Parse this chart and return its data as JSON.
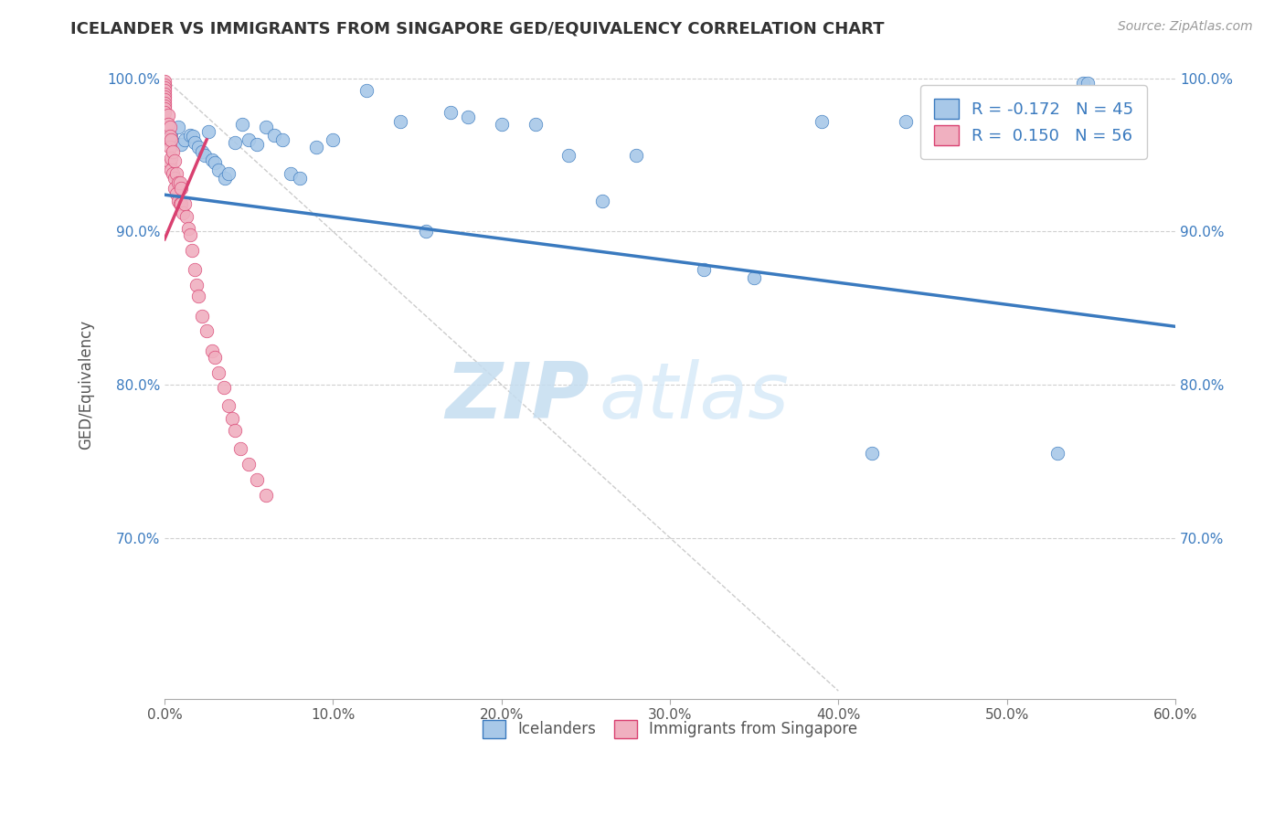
{
  "title": "ICELANDER VS IMMIGRANTS FROM SINGAPORE GED/EQUIVALENCY CORRELATION CHART",
  "source": "Source: ZipAtlas.com",
  "ylabel_label": "GED/Equivalency",
  "xlim": [
    0.0,
    0.6
  ],
  "ylim": [
    0.595,
    1.005
  ],
  "xticks": [
    0.0,
    0.1,
    0.2,
    0.3,
    0.4,
    0.5,
    0.6
  ],
  "yticks": [
    0.7,
    0.8,
    0.9,
    1.0
  ],
  "ytick_labels": [
    "70.0%",
    "80.0%",
    "90.0%",
    "100.0%"
  ],
  "xtick_labels": [
    "0.0%",
    "10.0%",
    "20.0%",
    "30.0%",
    "40.0%",
    "50.0%",
    "60.0%"
  ],
  "blue_color": "#a8c8e8",
  "pink_color": "#f0b0c0",
  "blue_line_color": "#3a7abf",
  "pink_line_color": "#d94070",
  "diagonal_color": "#cccccc",
  "watermark_zip": "ZIP",
  "watermark_atlas": "atlas",
  "legend_R_blue": "-0.172",
  "legend_N_blue": "45",
  "legend_R_pink": "0.150",
  "legend_N_pink": "56",
  "blue_x": [
    0.004,
    0.008,
    0.01,
    0.012,
    0.015,
    0.017,
    0.018,
    0.02,
    0.022,
    0.024,
    0.026,
    0.028,
    0.03,
    0.032,
    0.036,
    0.038,
    0.042,
    0.046,
    0.05,
    0.055,
    0.06,
    0.065,
    0.07,
    0.075,
    0.08,
    0.09,
    0.1,
    0.12,
    0.14,
    0.155,
    0.17,
    0.18,
    0.2,
    0.22,
    0.24,
    0.26,
    0.28,
    0.32,
    0.35,
    0.39,
    0.42,
    0.44,
    0.53,
    0.545,
    0.548
  ],
  "blue_y": [
    0.962,
    0.968,
    0.957,
    0.96,
    0.963,
    0.962,
    0.958,
    0.955,
    0.952,
    0.95,
    0.965,
    0.947,
    0.945,
    0.94,
    0.935,
    0.938,
    0.958,
    0.97,
    0.96,
    0.957,
    0.968,
    0.963,
    0.96,
    0.938,
    0.935,
    0.955,
    0.96,
    0.992,
    0.972,
    0.9,
    0.978,
    0.975,
    0.97,
    0.97,
    0.95,
    0.92,
    0.95,
    0.875,
    0.87,
    0.972,
    0.755,
    0.972,
    0.755,
    0.997,
    0.997
  ],
  "pink_x": [
    0.0,
    0.0,
    0.0,
    0.0,
    0.0,
    0.0,
    0.0,
    0.0,
    0.0,
    0.0,
    0.0,
    0.002,
    0.002,
    0.002,
    0.003,
    0.003,
    0.003,
    0.003,
    0.004,
    0.004,
    0.004,
    0.005,
    0.005,
    0.006,
    0.006,
    0.006,
    0.007,
    0.007,
    0.008,
    0.008,
    0.009,
    0.009,
    0.01,
    0.01,
    0.011,
    0.012,
    0.013,
    0.014,
    0.015,
    0.016,
    0.018,
    0.019,
    0.02,
    0.022,
    0.025,
    0.028,
    0.03,
    0.032,
    0.035,
    0.038,
    0.04,
    0.042,
    0.045,
    0.05,
    0.055,
    0.06
  ],
  "pink_y": [
    0.998,
    0.996,
    0.994,
    0.992,
    0.99,
    0.988,
    0.986,
    0.984,
    0.982,
    0.98,
    0.978,
    0.976,
    0.97,
    0.96,
    0.968,
    0.962,
    0.955,
    0.945,
    0.96,
    0.948,
    0.94,
    0.952,
    0.938,
    0.946,
    0.935,
    0.928,
    0.938,
    0.925,
    0.932,
    0.92,
    0.932,
    0.918,
    0.928,
    0.918,
    0.912,
    0.918,
    0.91,
    0.902,
    0.898,
    0.888,
    0.875,
    0.865,
    0.858,
    0.845,
    0.835,
    0.822,
    0.818,
    0.808,
    0.798,
    0.786,
    0.778,
    0.77,
    0.758,
    0.748,
    0.738,
    0.728
  ],
  "blue_trend_x": [
    0.0,
    0.6
  ],
  "blue_trend_y": [
    0.924,
    0.838
  ],
  "pink_trend_x": [
    0.0,
    0.025
  ],
  "pink_trend_y": [
    0.895,
    0.96
  ]
}
